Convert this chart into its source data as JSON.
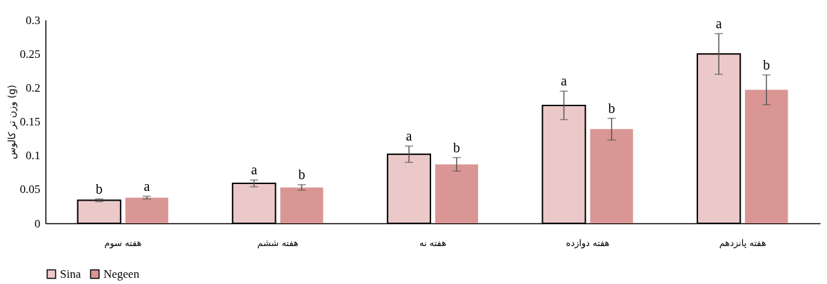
{
  "chart_data": {
    "type": "bar",
    "ylabel": "وزن تر کالوس (g)",
    "categories": [
      "هفته سوم",
      "هفته ششم",
      "هفته نه",
      "هفته دوازده",
      "هفته پانزدهم"
    ],
    "series": [
      {
        "name": "Sina",
        "color": "#ecc9c9",
        "values": [
          0.034,
          0.059,
          0.102,
          0.174,
          0.25
        ],
        "errors": [
          0.002,
          0.005,
          0.012,
          0.021,
          0.03
        ],
        "value_labels": [
          "b",
          "a",
          "a",
          "a",
          "a"
        ]
      },
      {
        "name": "Negeen",
        "color": "#da9694",
        "values": [
          0.038,
          0.053,
          0.087,
          0.139,
          0.197
        ],
        "errors": [
          0.002,
          0.004,
          0.01,
          0.016,
          0.022
        ],
        "value_labels": [
          "a",
          "b",
          "b",
          "b",
          "b"
        ]
      }
    ],
    "ylim": [
      0,
      0.3
    ],
    "yticks": [
      0,
      0.05,
      0.1,
      0.15,
      0.2,
      0.25,
      0.3
    ],
    "grid": false,
    "legend": "bottom"
  }
}
